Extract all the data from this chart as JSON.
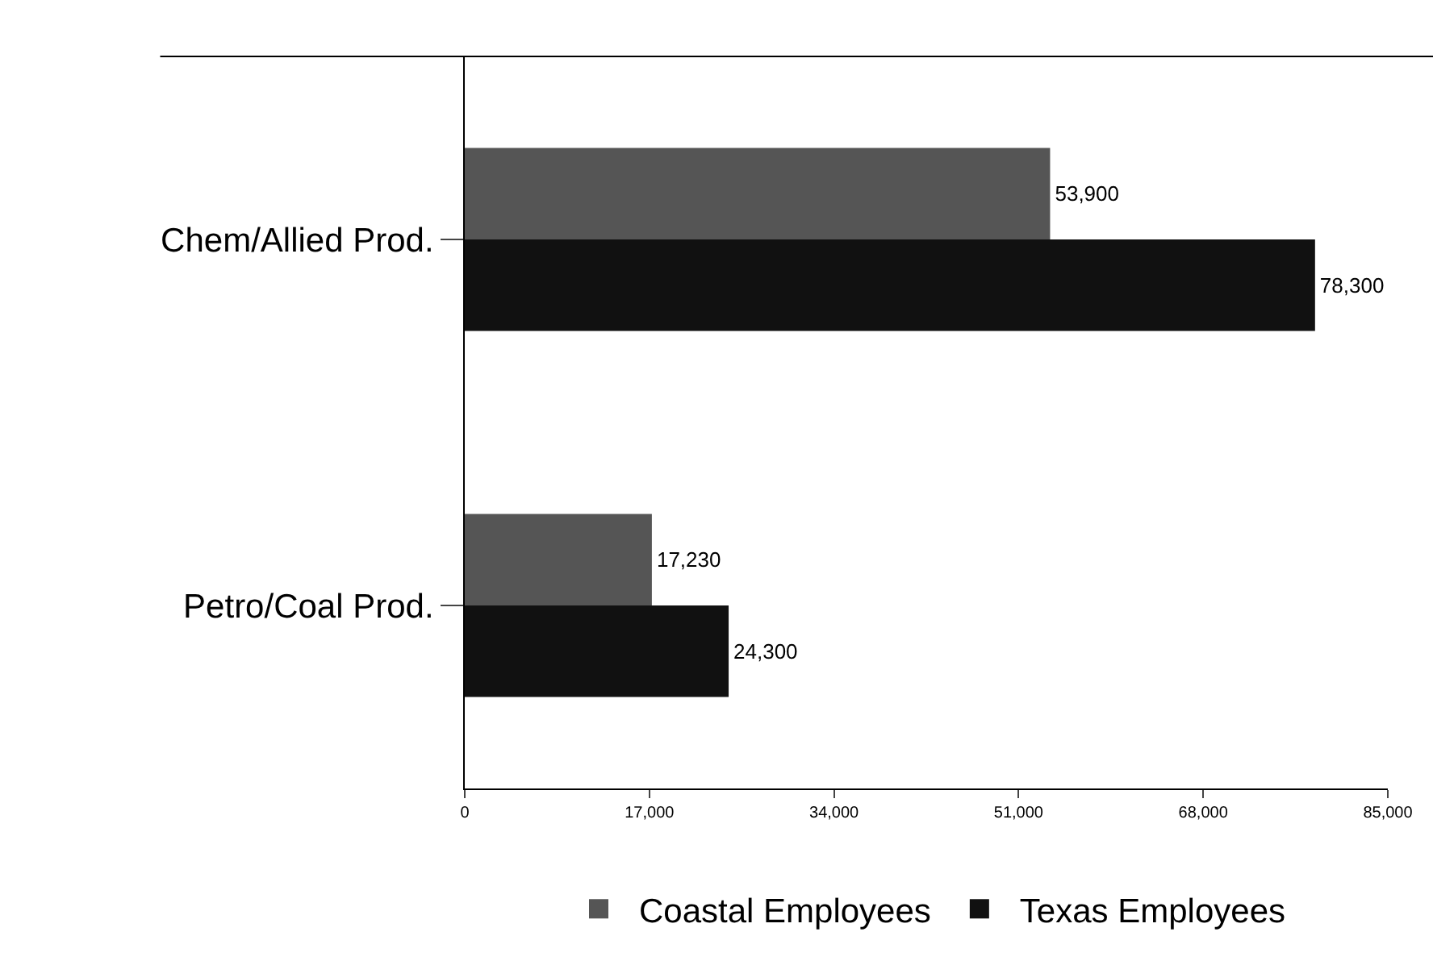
{
  "chart_data": {
    "type": "bar",
    "orientation": "horizontal",
    "categories": [
      "Chem/Allied Prod.",
      "Petro/Coal Prod."
    ],
    "series": [
      {
        "name": "Coastal Employees",
        "color": "#555555",
        "values": [
          53900,
          17230
        ],
        "value_labels": [
          "53,900",
          "17,230"
        ]
      },
      {
        "name": "Texas Employees",
        "color": "#111111",
        "values": [
          78300,
          24300
        ],
        "value_labels": [
          "78,300",
          "24,300"
        ]
      }
    ],
    "xlim": [
      0,
      85000
    ],
    "xticks": [
      {
        "value": 0,
        "label": "0"
      },
      {
        "value": 17000,
        "label": "17,000"
      },
      {
        "value": 34000,
        "label": "34,000"
      },
      {
        "value": 51000,
        "label": "51,000"
      },
      {
        "value": 68000,
        "label": "68,000"
      },
      {
        "value": 85000,
        "label": "85,000"
      }
    ],
    "grid": false,
    "legend": "bottom"
  }
}
